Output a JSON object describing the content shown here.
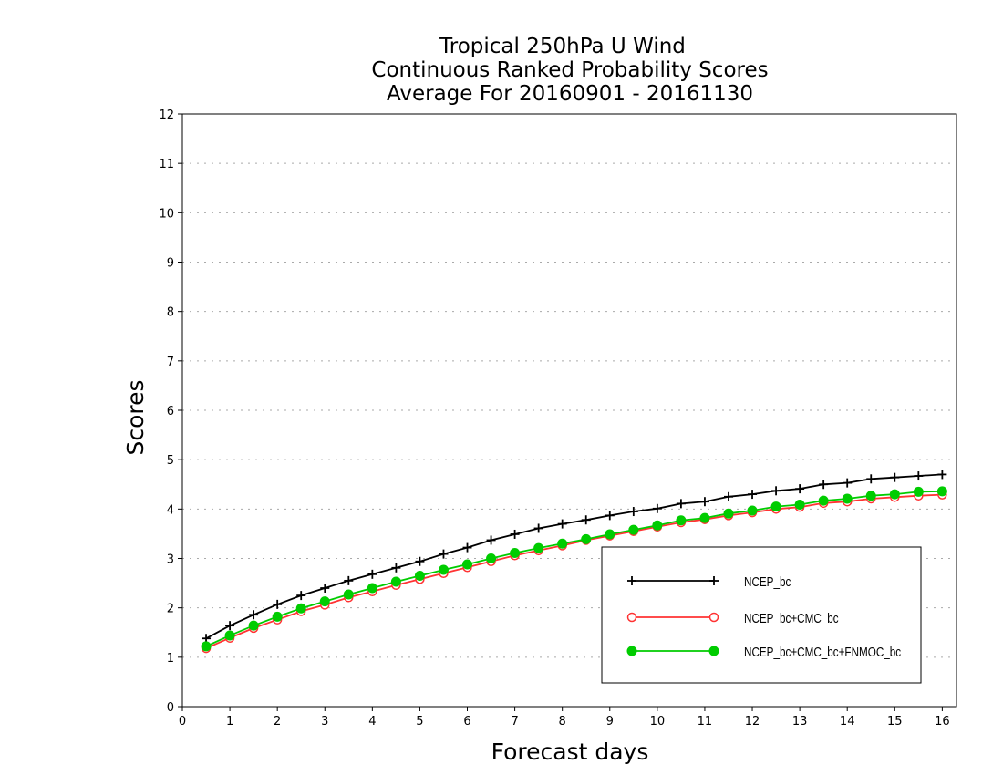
{
  "chart_data": {
    "type": "line",
    "title_lines": [
      "Tropical 250hPa U Wind",
      "Continuous Ranked Probability Scores",
      "Average For 20160901 - 20161130"
    ],
    "xlabel": "Forecast days",
    "ylabel": "Scores",
    "xlim": [
      0,
      16.3
    ],
    "ylim": [
      0,
      12
    ],
    "xticks": [
      "0",
      "1",
      "2",
      "3",
      "4",
      "5",
      "6",
      "7",
      "8",
      "9",
      "10",
      "11",
      "12",
      "13",
      "14",
      "15",
      "16"
    ],
    "yticks": [
      "0",
      "1",
      "2",
      "3",
      "4",
      "5",
      "6",
      "7",
      "8",
      "9",
      "10",
      "11",
      "12"
    ],
    "grid": "horizontal dotted",
    "legend_position": "lower-right",
    "x": [
      0.5,
      1,
      1.5,
      2,
      2.5,
      3,
      3.5,
      4,
      4.5,
      5,
      5.5,
      6,
      6.5,
      7,
      7.5,
      8,
      8.5,
      9,
      9.5,
      10,
      10.5,
      11,
      11.5,
      12,
      12.5,
      13,
      13.5,
      14,
      14.5,
      15,
      15.5,
      16
    ],
    "series": [
      {
        "name": "NCEP_bc",
        "color": "#000000",
        "marker": "plus",
        "values": [
          1.38,
          1.64,
          1.86,
          2.07,
          2.25,
          2.4,
          2.55,
          2.68,
          2.81,
          2.94,
          3.09,
          3.22,
          3.37,
          3.49,
          3.61,
          3.7,
          3.78,
          3.87,
          3.95,
          4.01,
          4.11,
          4.15,
          4.25,
          4.3,
          4.37,
          4.41,
          4.5,
          4.53,
          4.61,
          4.64,
          4.67,
          4.7
        ]
      },
      {
        "name": "NCEP_bc+CMC_bc",
        "color": "#ff3333",
        "marker": "open-circle",
        "values": [
          1.18,
          1.39,
          1.59,
          1.76,
          1.93,
          2.06,
          2.21,
          2.33,
          2.46,
          2.58,
          2.7,
          2.82,
          2.94,
          3.06,
          3.16,
          3.26,
          3.37,
          3.46,
          3.55,
          3.64,
          3.73,
          3.79,
          3.87,
          3.93,
          4.0,
          4.04,
          4.12,
          4.15,
          4.21,
          4.24,
          4.27,
          4.29
        ]
      },
      {
        "name": "NCEP_bc+CMC_bc+FNMOC_bc",
        "color": "#00cc00",
        "marker": "filled-circle",
        "values": [
          1.22,
          1.44,
          1.64,
          1.82,
          1.99,
          2.13,
          2.27,
          2.4,
          2.53,
          2.65,
          2.77,
          2.88,
          3.0,
          3.11,
          3.21,
          3.3,
          3.39,
          3.49,
          3.58,
          3.67,
          3.77,
          3.82,
          3.91,
          3.97,
          4.05,
          4.09,
          4.17,
          4.21,
          4.27,
          4.3,
          4.35,
          4.36
        ]
      }
    ]
  }
}
